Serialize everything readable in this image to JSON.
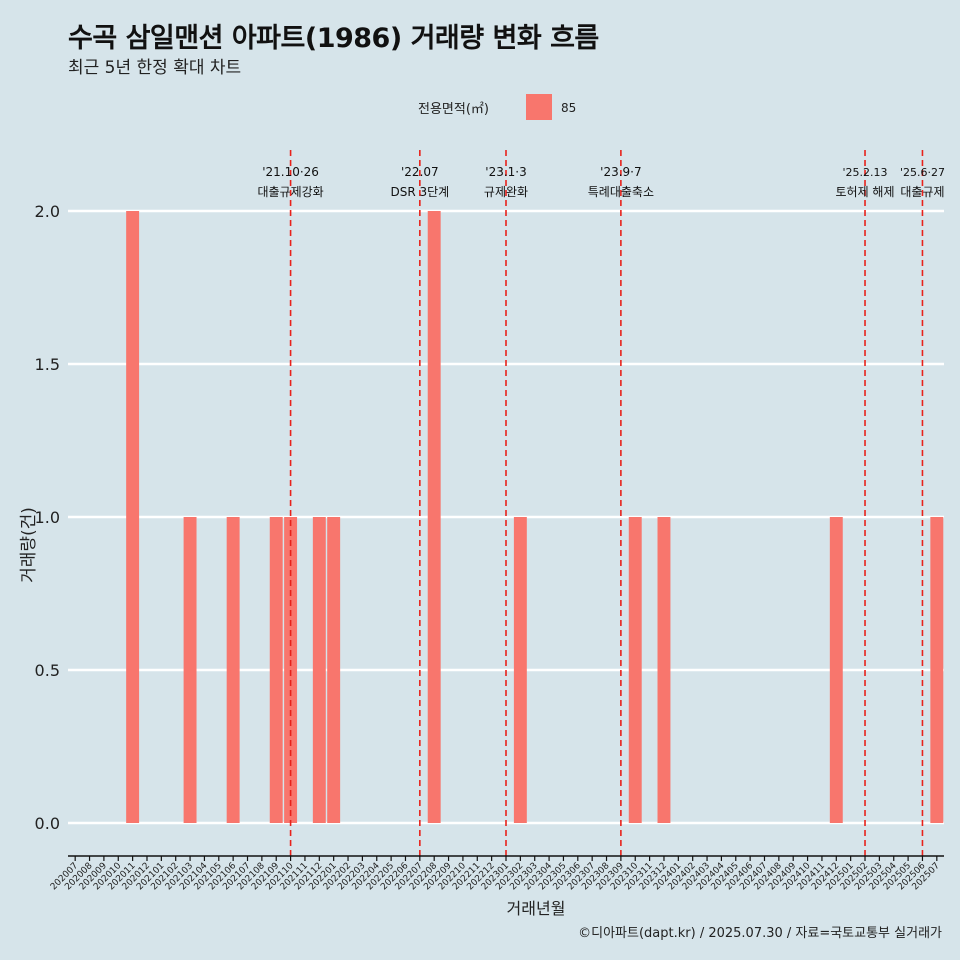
{
  "title": "수곡 삼일맨션 아파트(1986) 거래량 변화 흐름",
  "subtitle": "최근 5년 한정 확대 차트",
  "caption": "©디아파트(dapt.kr) / 2025.07.30 / 자료=국토교통부 실거래가",
  "colors": {
    "bar": "#f8766d",
    "vline": "#e8221b",
    "background": "#d6e4ea",
    "grid": "#ffffff"
  },
  "chart_data": {
    "type": "bar",
    "xlabel": "거래년월",
    "ylabel": "거래량(건)",
    "ylim": [
      0,
      2
    ],
    "yticks": [
      0.0,
      0.5,
      1.0,
      1.5,
      2.0
    ],
    "legend": {
      "title": "전용면적(㎡)",
      "position": "top",
      "entries": [
        {
          "name": "85",
          "color": "#f8766d"
        }
      ]
    },
    "categories": [
      "202007",
      "202008",
      "202009",
      "202010",
      "202011",
      "202012",
      "202101",
      "202102",
      "202103",
      "202104",
      "202105",
      "202106",
      "202107",
      "202108",
      "202109",
      "202110",
      "202111",
      "202112",
      "202201",
      "202202",
      "202203",
      "202204",
      "202205",
      "202206",
      "202207",
      "202208",
      "202209",
      "202210",
      "202211",
      "202212",
      "202301",
      "202302",
      "202303",
      "202304",
      "202305",
      "202306",
      "202307",
      "202308",
      "202309",
      "202310",
      "202311",
      "202312",
      "202401",
      "202402",
      "202403",
      "202404",
      "202405",
      "202406",
      "202407",
      "202408",
      "202409",
      "202410",
      "202411",
      "202412",
      "202501",
      "202502",
      "202503",
      "202504",
      "202505",
      "202506",
      "202507"
    ],
    "series": [
      {
        "name": "85",
        "values": [
          0,
          0,
          0,
          0,
          2,
          0,
          0,
          0,
          1,
          0,
          0,
          1,
          0,
          0,
          1,
          1,
          0,
          1,
          1,
          0,
          0,
          0,
          0,
          0,
          0,
          2,
          0,
          0,
          0,
          0,
          0,
          1,
          0,
          0,
          0,
          0,
          0,
          0,
          0,
          1,
          0,
          1,
          0,
          0,
          0,
          0,
          0,
          0,
          0,
          0,
          0,
          0,
          0,
          1,
          0,
          0,
          0,
          0,
          0,
          0,
          1
        ]
      }
    ],
    "annotations": [
      {
        "x": "202110",
        "line1": "'21.10·26",
        "line2": "대출규제강화"
      },
      {
        "x": "202207",
        "line1": "'22.07",
        "line2": "DSR 3단계"
      },
      {
        "x": "202301",
        "line1": "'23.1·3",
        "line2": "규제완화"
      },
      {
        "x": "202309",
        "line1": "'23.9·7",
        "line2": "특례대출축소"
      },
      {
        "x": "202502",
        "line1": "'25.2.13",
        "line2": "토허제 해제"
      },
      {
        "x": "202506",
        "line1": "'25.6·27",
        "line2": "대출규제"
      }
    ]
  }
}
